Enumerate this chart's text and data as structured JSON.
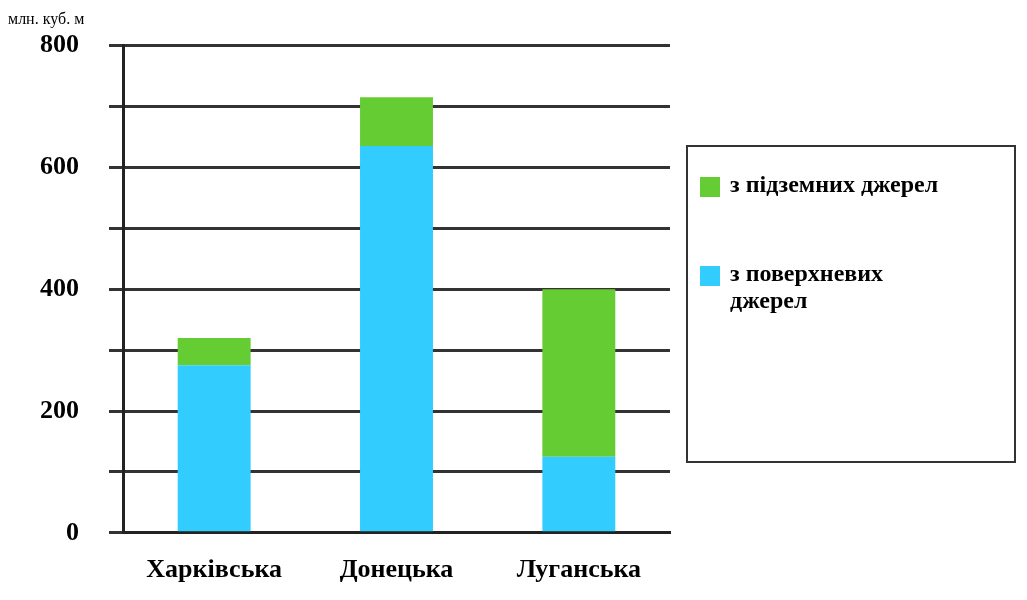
{
  "chart_data": {
    "type": "bar",
    "ylabel": "млн. куб. м",
    "categories": [
      "Харківська",
      "Донецька",
      "Луганська"
    ],
    "stacked": true,
    "legend": "right",
    "grid": "y",
    "series": [
      {
        "name": "з поверхневих джерел",
        "color": "#33ccff",
        "values": [
          275,
          635,
          125
        ]
      },
      {
        "name": "з підземних джерел",
        "color": "#66cc33",
        "values": [
          45,
          80,
          275
        ]
      }
    ],
    "ylim": [
      0,
      800
    ],
    "yticks": [
      0,
      {
        "value": 100,
        "label": null
      },
      200,
      {
        "value": 300,
        "label": null
      },
      400,
      {
        "value": 500,
        "label": null
      },
      600,
      {
        "value": 700,
        "label": null
      },
      800
    ]
  }
}
